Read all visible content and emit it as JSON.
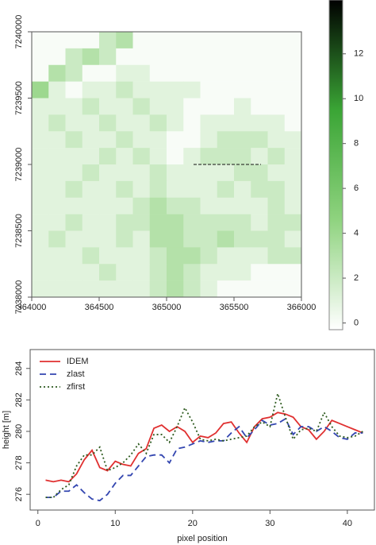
{
  "chart_data": [
    {
      "type": "heatmap",
      "xlim": [
        364000,
        366000
      ],
      "ylim": [
        7238000,
        7240000
      ],
      "xticks": [
        364000,
        364500,
        365000,
        365500,
        366000
      ],
      "yticks": [
        7238000,
        7238500,
        7239000,
        7239500,
        7240000
      ],
      "z": [
        [
          0,
          0,
          0,
          0,
          2,
          3,
          0,
          0,
          0,
          0,
          0,
          0,
          0,
          0,
          0,
          0
        ],
        [
          0,
          0,
          2,
          3,
          2,
          0,
          0,
          0,
          0,
          0,
          0,
          0,
          0,
          0,
          0,
          0
        ],
        [
          0,
          3,
          2,
          0,
          0,
          1,
          1,
          0,
          0,
          0,
          0,
          0,
          0,
          0,
          0,
          0
        ],
        [
          4,
          1,
          0,
          1,
          1,
          2,
          1,
          1,
          1,
          1,
          0,
          0,
          0,
          0,
          0,
          0
        ],
        [
          1,
          1,
          1,
          2,
          1,
          1,
          2,
          1,
          1,
          0,
          0,
          0,
          1,
          0,
          0,
          0
        ],
        [
          1,
          2,
          1,
          1,
          2,
          1,
          1,
          2,
          1,
          0,
          1,
          1,
          1,
          1,
          1,
          0
        ],
        [
          1,
          1,
          2,
          1,
          1,
          2,
          1,
          1,
          0,
          0,
          1,
          2,
          2,
          2,
          1,
          1
        ],
        [
          1,
          1,
          1,
          1,
          2,
          1,
          2,
          1,
          0,
          1,
          2,
          2,
          2,
          1,
          2,
          1
        ],
        [
          1,
          1,
          1,
          2,
          1,
          1,
          1,
          2,
          1,
          1,
          1,
          1,
          2,
          2,
          1,
          1
        ],
        [
          1,
          1,
          2,
          1,
          1,
          2,
          1,
          2,
          1,
          1,
          1,
          2,
          1,
          2,
          2,
          1
        ],
        [
          1,
          1,
          1,
          1,
          1,
          1,
          2,
          3,
          2,
          2,
          1,
          1,
          1,
          1,
          2,
          1
        ],
        [
          1,
          1,
          2,
          1,
          1,
          2,
          2,
          3,
          3,
          2,
          2,
          2,
          2,
          1,
          2,
          2
        ],
        [
          1,
          2,
          1,
          1,
          1,
          2,
          1,
          3,
          3,
          2,
          2,
          3,
          2,
          2,
          2,
          1
        ],
        [
          1,
          1,
          1,
          2,
          1,
          1,
          1,
          2,
          3,
          3,
          2,
          1,
          1,
          1,
          2,
          2
        ],
        [
          1,
          1,
          1,
          1,
          2,
          1,
          1,
          2,
          3,
          2,
          1,
          1,
          1,
          0,
          0,
          0
        ],
        [
          1,
          1,
          1,
          1,
          1,
          1,
          1,
          2,
          3,
          2,
          1,
          0,
          0,
          0,
          0,
          0
        ]
      ],
      "colormap": [
        "#ffffff",
        "#8fd37f",
        "#3aa535",
        "#000000"
      ],
      "colorbar_lim": [
        -0.3,
        14.4
      ],
      "colorbar_ticks": [
        0,
        2,
        4,
        6,
        8,
        10,
        12
      ],
      "profile": {
        "x": [
          365200,
          365700
        ],
        "y": [
          7239000,
          7239000
        ]
      }
    },
    {
      "type": "line",
      "xlabel": "pixel position",
      "ylabel": "height [m]",
      "xlim": [
        -1,
        43.5
      ],
      "ylim": [
        275,
        285.2
      ],
      "xticks": [
        0,
        10,
        20,
        30,
        40
      ],
      "yticks": [
        276,
        278,
        280,
        282,
        284
      ],
      "legend": "top-left",
      "x": [
        1,
        2,
        3,
        4,
        5,
        6,
        7,
        8,
        9,
        10,
        11,
        12,
        13,
        14,
        15,
        16,
        17,
        18,
        19,
        20,
        21,
        22,
        23,
        24,
        25,
        26,
        27,
        28,
        29,
        30,
        31,
        32,
        33,
        34,
        35,
        36,
        37,
        38,
        39,
        40,
        41,
        42
      ],
      "series": [
        {
          "name": "IDEM",
          "color": "#e03030",
          "linestyle": "solid",
          "values": [
            276.9,
            276.8,
            276.9,
            276.8,
            277.3,
            278.2,
            278.8,
            277.7,
            277.5,
            278.1,
            277.9,
            277.8,
            278.6,
            278.9,
            280.2,
            280.4,
            280.0,
            280.3,
            280.0,
            279.3,
            279.7,
            279.6,
            279.9,
            280.5,
            280.6,
            279.9,
            279.3,
            280.3,
            280.8,
            280.9,
            281.2,
            281.1,
            280.9,
            280.3,
            280.1,
            279.5,
            280.0,
            280.7,
            280.5,
            280.3,
            280.1,
            279.9
          ]
        },
        {
          "name": "zlast",
          "color": "#3346b0",
          "linestyle": "dashed",
          "values": [
            275.8,
            275.8,
            276.2,
            276.2,
            276.6,
            276.1,
            275.7,
            275.6,
            276.0,
            276.7,
            277.2,
            277.2,
            277.8,
            278.4,
            278.5,
            278.5,
            278.0,
            278.9,
            279.0,
            279.2,
            279.4,
            279.3,
            279.4,
            279.4,
            279.9,
            280.3,
            279.6,
            280.1,
            280.7,
            280.4,
            280.5,
            280.8,
            279.8,
            280.3,
            280.3,
            280.0,
            280.3,
            280.0,
            279.6,
            279.5,
            279.9,
            279.9
          ]
        },
        {
          "name": "zfirst",
          "color": "#2d5a1e",
          "linestyle": "dotted",
          "values": [
            275.8,
            275.8,
            276.3,
            276.6,
            277.8,
            278.5,
            278.5,
            279.0,
            277.5,
            277.7,
            278.0,
            278.5,
            279.2,
            278.6,
            279.8,
            279.8,
            279.3,
            280.3,
            281.5,
            280.6,
            279.5,
            279.4,
            279.5,
            279.4,
            279.5,
            279.6,
            279.7,
            280.3,
            280.6,
            280.3,
            282.4,
            280.9,
            279.5,
            280.1,
            280.2,
            280.0,
            281.2,
            280.3,
            279.7,
            279.6,
            279.7,
            280.0
          ]
        }
      ]
    }
  ]
}
